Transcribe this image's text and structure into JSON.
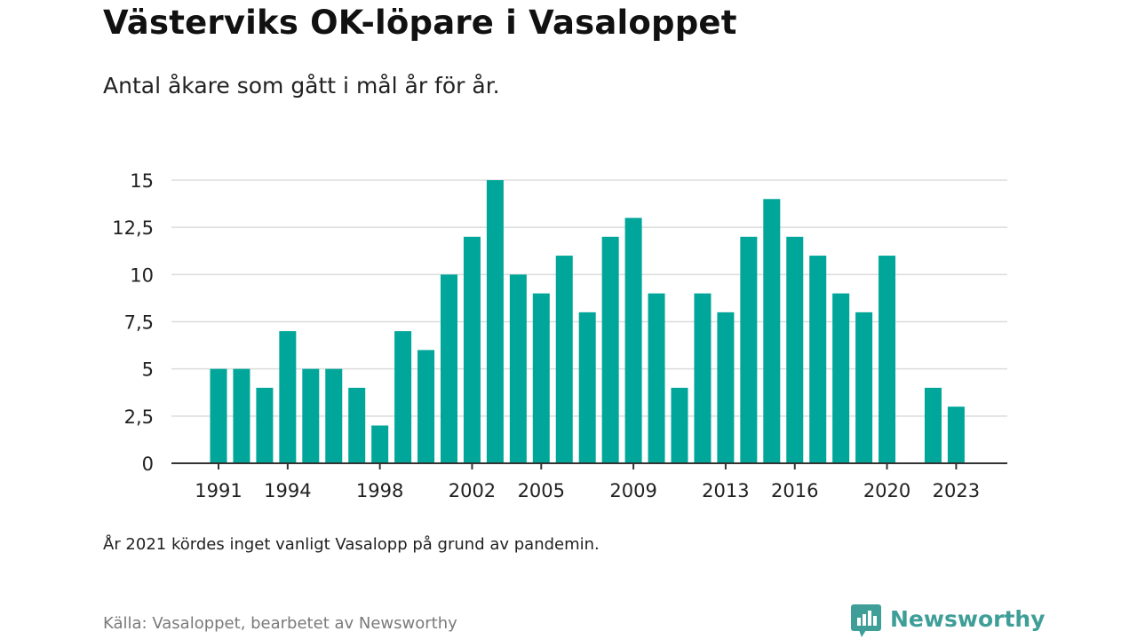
{
  "title": "Västerviks OK-löpare i Vasaloppet",
  "subtitle": "Antal åkare som gått i mål år för år.",
  "note": "År 2021 kördes inget vanligt Vasalopp på grund av pandemin.",
  "source": "Källa: Vasaloppet, bearbetet av Newsworthy",
  "brand": {
    "name": "Newsworthy",
    "icon": "newsworthy-logo-icon",
    "color": "#3f9f98"
  },
  "chart_data": {
    "type": "bar",
    "title": "Västerviks OK-löpare i Vasaloppet",
    "subtitle": "Antal åkare som gått i mål år för år.",
    "xlabel": "",
    "ylabel": "",
    "categories": [
      1991,
      1992,
      1993,
      1994,
      1995,
      1996,
      1997,
      1998,
      1999,
      2000,
      2001,
      2002,
      2003,
      2004,
      2005,
      2006,
      2007,
      2008,
      2009,
      2010,
      2011,
      2012,
      2013,
      2014,
      2015,
      2016,
      2017,
      2018,
      2019,
      2020,
      2021,
      2022,
      2023
    ],
    "values": [
      5,
      5,
      4,
      7,
      5,
      5,
      4,
      2,
      7,
      6,
      10,
      12,
      15,
      10,
      9,
      11,
      8,
      12,
      13,
      9,
      4,
      9,
      8,
      12,
      14,
      12,
      11,
      9,
      8,
      11,
      null,
      4,
      3
    ],
    "x_tick_labels": [
      "1991",
      "1994",
      "1998",
      "2002",
      "2005",
      "2009",
      "2013",
      "2016",
      "2020",
      "2023"
    ],
    "y_tick_labels": [
      "0",
      "2,5",
      "5",
      "7,5",
      "10",
      "12,5",
      "15"
    ],
    "y_ticks": [
      0,
      2.5,
      5,
      7.5,
      10,
      12.5,
      15
    ],
    "ylim": [
      0,
      15
    ],
    "grid": true,
    "legend": "none",
    "colors": {
      "bar": "#00a699",
      "grid": "#dcdcdc",
      "axis": "#333333"
    }
  }
}
